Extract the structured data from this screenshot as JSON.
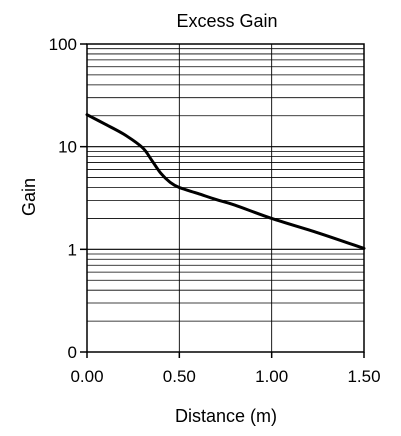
{
  "chart_data": {
    "type": "line",
    "title": "Excess Gain",
    "xlabel": "Distance (m)",
    "ylabel": "Gain",
    "xscale": "linear",
    "yscale": "log",
    "xlim": [
      0,
      1.5
    ],
    "ylim": [
      0.1,
      100
    ],
    "grid": true,
    "xticks": [
      {
        "value": 0.0,
        "label": "0.00"
      },
      {
        "value": 0.5,
        "label": "0.50"
      },
      {
        "value": 1.0,
        "label": "1.00"
      },
      {
        "value": 1.5,
        "label": "1.50"
      }
    ],
    "yticks": [
      {
        "value": 0.1,
        "label": "0"
      },
      {
        "value": 1,
        "label": "1"
      },
      {
        "value": 10,
        "label": "10"
      },
      {
        "value": 100,
        "label": "100"
      }
    ],
    "series": [
      {
        "color": "#000000",
        "points": [
          {
            "x": 0.0,
            "y": 20.5
          },
          {
            "x": 0.1,
            "y": 16.5
          },
          {
            "x": 0.2,
            "y": 13.2
          },
          {
            "x": 0.3,
            "y": 9.8
          },
          {
            "x": 0.35,
            "y": 7.4
          },
          {
            "x": 0.4,
            "y": 5.5
          },
          {
            "x": 0.45,
            "y": 4.5
          },
          {
            "x": 0.5,
            "y": 4.0
          },
          {
            "x": 0.6,
            "y": 3.5
          },
          {
            "x": 0.7,
            "y": 3.05
          },
          {
            "x": 0.8,
            "y": 2.7
          },
          {
            "x": 1.0,
            "y": 2.0
          },
          {
            "x": 1.25,
            "y": 1.45
          },
          {
            "x": 1.5,
            "y": 1.02
          }
        ]
      }
    ]
  }
}
